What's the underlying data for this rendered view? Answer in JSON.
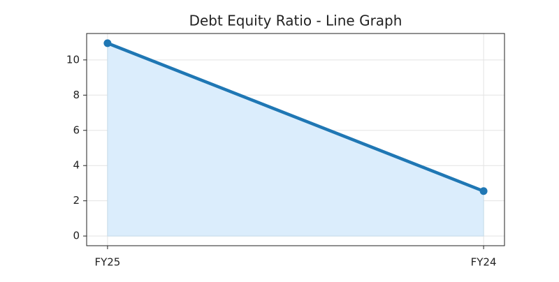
{
  "chart_data": {
    "type": "line",
    "title": "Debt Equity Ratio - Line Graph",
    "categories": [
      "FY25",
      "FY24"
    ],
    "series": [
      {
        "name": "Debt Equity Ratio",
        "color": "#1f77b4",
        "values": [
          10.95,
          2.55
        ]
      }
    ],
    "fill": true,
    "fill_color": "#dbedfc",
    "ylim": [
      -0.55,
      11.5
    ],
    "yticks": [
      0,
      2,
      4,
      6,
      8,
      10
    ],
    "grid": true
  }
}
